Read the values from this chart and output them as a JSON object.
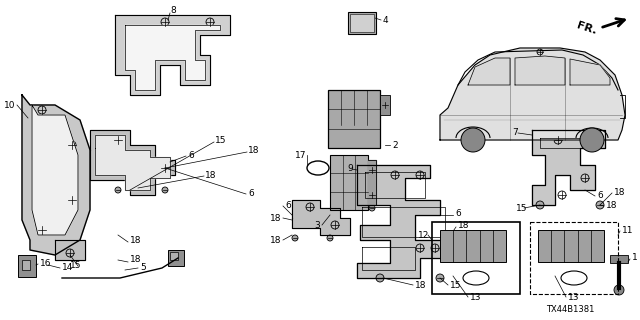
{
  "bg_color": "#ffffff",
  "diagram_code": "TX44B1381",
  "line_color": "#000000",
  "label_fontsize": 6.5,
  "small_fontsize": 5.5,
  "fr_text": "FR.",
  "car_color": "#e8e8e8",
  "part_gray": "#999999",
  "part_light": "#cccccc",
  "part_mid": "#888888"
}
